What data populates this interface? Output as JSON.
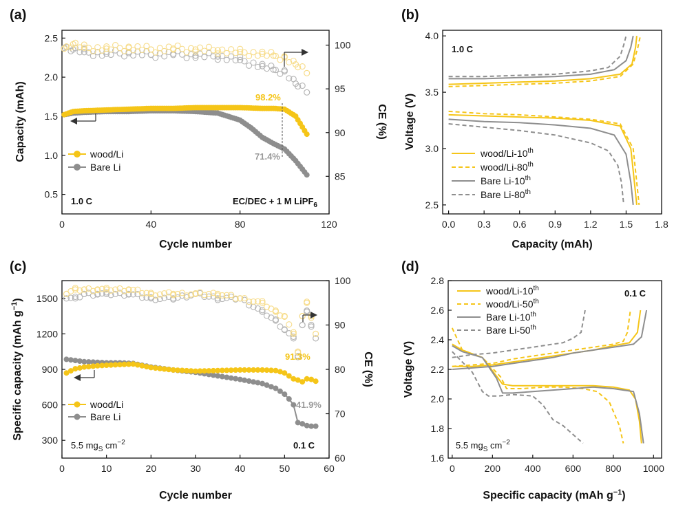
{
  "colors": {
    "wood": "#F5C518",
    "bare": "#8E8E8E",
    "wood_light": "#F7DC8A",
    "bare_light": "#B5B5B5"
  },
  "chart_data": [
    {
      "panel": "(a)",
      "type": "scatter",
      "xlabel": "Cycle number",
      "ylabel": "Capacity (mAh)",
      "y2label": "CE (%)",
      "xlim": [
        0,
        120
      ],
      "ylim": [
        0.25,
        2.6
      ],
      "y2lim": [
        80.7,
        101.7
      ],
      "xticks": [
        "0",
        "40",
        "80",
        "120"
      ],
      "yticks": [
        "0.5",
        "1.0",
        "1.5",
        "2.0",
        "2.5"
      ],
      "y2ticks": [
        "85",
        "90",
        "95",
        "100"
      ],
      "annotations": {
        "rate": "1.0 C",
        "electrolyte": "EC/DEC + 1 M LiPF",
        "electrolyte_sub": "6",
        "wood_ret": "98.2%",
        "bare_ret": "71.4%"
      },
      "series": [
        {
          "name": "wood/Li",
          "axis": "y",
          "x": [
            1,
            5,
            10,
            20,
            30,
            40,
            50,
            60,
            70,
            80,
            90,
            95,
            100,
            105,
            110
          ],
          "y": [
            1.52,
            1.56,
            1.57,
            1.58,
            1.59,
            1.6,
            1.6,
            1.61,
            1.61,
            1.61,
            1.6,
            1.6,
            1.59,
            1.5,
            1.27
          ]
        },
        {
          "name": "Bare Li",
          "axis": "y",
          "x": [
            1,
            5,
            10,
            20,
            30,
            40,
            50,
            60,
            70,
            80,
            85,
            90,
            95,
            100,
            105,
            110
          ],
          "y": [
            1.52,
            1.54,
            1.55,
            1.56,
            1.56,
            1.57,
            1.57,
            1.56,
            1.54,
            1.45,
            1.35,
            1.23,
            1.15,
            1.08,
            0.93,
            0.75
          ]
        },
        {
          "name": "wood/Li CE",
          "axis": "y2",
          "x": [
            1,
            5,
            10,
            20,
            30,
            40,
            50,
            60,
            70,
            80,
            90,
            95,
            100,
            105,
            110
          ],
          "y": [
            99.6,
            100.1,
            99.7,
            99.6,
            99.7,
            99.5,
            99.6,
            99.5,
            99.4,
            99.2,
            99.0,
            98.8,
            98.6,
            97.8,
            96.8
          ]
        },
        {
          "name": "Bare Li CE",
          "axis": "y2",
          "x": [
            1,
            5,
            10,
            20,
            30,
            40,
            50,
            60,
            70,
            80,
            90,
            95,
            100,
            105,
            110
          ],
          "y": [
            99.7,
            99.5,
            99.2,
            99.0,
            99.1,
            98.9,
            99.0,
            98.8,
            98.7,
            98.3,
            97.6,
            97.2,
            97.0,
            95.6,
            94.6
          ]
        }
      ]
    },
    {
      "panel": "(b)",
      "type": "line",
      "xlabel": "Capacity (mAh)",
      "ylabel": "Voltage (V)",
      "xlim": [
        -0.05,
        1.8
      ],
      "ylim": [
        2.42,
        4.05
      ],
      "xticks": [
        "0.0",
        "0.3",
        "0.6",
        "0.9",
        "1.2",
        "1.5",
        "1.8"
      ],
      "yticks": [
        "2.5",
        "3.0",
        "3.5",
        "4.0"
      ],
      "annotations": {
        "rate": "1.0 C"
      },
      "series": [
        {
          "name": "wood/Li-10th",
          "style": "solid",
          "color": "wood",
          "charge": {
            "x": [
              0,
              0.3,
              0.6,
              0.9,
              1.2,
              1.45,
              1.55,
              1.58,
              1.59
            ],
            "y": [
              3.57,
              3.58,
              3.59,
              3.6,
              3.62,
              3.66,
              3.75,
              3.9,
              4.0
            ]
          },
          "discharge": {
            "x": [
              0,
              0.3,
              0.6,
              0.9,
              1.2,
              1.45,
              1.54,
              1.57,
              1.59
            ],
            "y": [
              3.3,
              3.29,
              3.28,
              3.27,
              3.25,
              3.2,
              3.0,
              2.7,
              2.5
            ]
          }
        },
        {
          "name": "wood/Li-80th",
          "style": "dashed",
          "color": "wood",
          "charge": {
            "x": [
              0,
              0.3,
              0.6,
              0.9,
              1.2,
              1.45,
              1.56,
              1.6,
              1.62
            ],
            "y": [
              3.55,
              3.56,
              3.57,
              3.58,
              3.6,
              3.64,
              3.75,
              3.9,
              4.0
            ]
          },
          "discharge": {
            "x": [
              0,
              0.3,
              0.6,
              0.9,
              1.2,
              1.45,
              1.56,
              1.59,
              1.61
            ],
            "y": [
              3.33,
              3.31,
              3.3,
              3.28,
              3.26,
              3.22,
              3.0,
              2.7,
              2.5
            ]
          }
        },
        {
          "name": "Bare Li-10th",
          "style": "solid",
          "color": "bare",
          "charge": {
            "x": [
              0,
              0.3,
              0.6,
              0.9,
              1.2,
              1.4,
              1.5,
              1.54,
              1.56
            ],
            "y": [
              3.62,
              3.62,
              3.63,
              3.64,
              3.66,
              3.7,
              3.78,
              3.9,
              4.0
            ]
          },
          "discharge": {
            "x": [
              0,
              0.3,
              0.6,
              0.9,
              1.2,
              1.4,
              1.5,
              1.54,
              1.56
            ],
            "y": [
              3.26,
              3.24,
              3.23,
              3.21,
              3.18,
              3.12,
              2.95,
              2.7,
              2.5
            ]
          }
        },
        {
          "name": "Bare Li-80th",
          "style": "dashed",
          "color": "bare",
          "charge": {
            "x": [
              0,
              0.3,
              0.6,
              0.9,
              1.2,
              1.35,
              1.45,
              1.48,
              1.5
            ],
            "y": [
              3.64,
              3.64,
              3.65,
              3.66,
              3.69,
              3.72,
              3.82,
              3.92,
              4.0
            ]
          },
          "discharge": {
            "x": [
              0,
              0.3,
              0.6,
              0.9,
              1.2,
              1.35,
              1.43,
              1.46,
              1.48
            ],
            "y": [
              3.22,
              3.19,
              3.16,
              3.12,
              3.05,
              2.98,
              2.85,
              2.7,
              2.5
            ]
          }
        }
      ]
    },
    {
      "panel": "(c)",
      "type": "scatter",
      "xlabel": "Cycle number",
      "ylabel": "Specific capacity (mAh g",
      "ylabel_sup": "−1",
      "y2label": "CE (%)",
      "xlim": [
        0,
        60
      ],
      "ylim": [
        150,
        1650
      ],
      "y2lim": [
        60,
        100
      ],
      "xticks": [
        "0",
        "10",
        "20",
        "30",
        "40",
        "50",
        "60"
      ],
      "yticks": [
        "300",
        "600",
        "900",
        "1200",
        "1500"
      ],
      "y2ticks": [
        "60",
        "70",
        "80",
        "90",
        "100"
      ],
      "annotations": {
        "rate": "0.1 C",
        "loading": "5.5 mg",
        "loading_sub": "S",
        "loading_unit": " cm",
        "loading_sup": "−2",
        "wood_ret": "91.3%",
        "bare_ret": "41.9%"
      },
      "series": [
        {
          "name": "wood/Li",
          "axis": "y",
          "x": [
            1,
            3,
            5,
            8,
            10,
            13,
            16,
            18,
            20,
            25,
            30,
            35,
            40,
            45,
            48,
            50,
            52,
            53,
            54,
            55,
            56,
            57
          ],
          "y": [
            870,
            905,
            920,
            930,
            935,
            940,
            945,
            930,
            915,
            895,
            885,
            890,
            895,
            895,
            890,
            870,
            820,
            810,
            795,
            820,
            815,
            800
          ]
        },
        {
          "name": "Bare Li",
          "axis": "y",
          "x": [
            1,
            3,
            5,
            8,
            10,
            13,
            16,
            18,
            20,
            25,
            30,
            35,
            40,
            45,
            48,
            50,
            51,
            52,
            53,
            54,
            55,
            56,
            57
          ],
          "y": [
            985,
            975,
            965,
            960,
            955,
            955,
            950,
            935,
            920,
            895,
            875,
            845,
            815,
            780,
            740,
            690,
            650,
            600,
            450,
            440,
            425,
            420,
            420
          ]
        },
        {
          "name": "wood/Li CE",
          "axis": "y2",
          "x": [
            1,
            3,
            5,
            8,
            10,
            15,
            20,
            25,
            30,
            35,
            40,
            45,
            48,
            50,
            52,
            53,
            54,
            55,
            56,
            57
          ],
          "y": [
            97,
            98,
            98,
            98,
            98,
            98,
            97,
            97,
            97,
            97,
            96,
            95,
            93,
            92,
            88,
            84,
            92,
            95,
            92,
            88
          ]
        },
        {
          "name": "Bare Li CE",
          "axis": "y2",
          "x": [
            1,
            3,
            5,
            8,
            10,
            15,
            20,
            25,
            30,
            35,
            40,
            45,
            48,
            50,
            52,
            53,
            54,
            55,
            56,
            57
          ],
          "y": [
            96,
            96,
            97,
            97,
            97,
            97,
            96,
            96,
            97,
            96,
            96,
            93,
            91,
            89,
            87,
            83,
            90,
            93,
            90,
            87
          ]
        }
      ]
    },
    {
      "panel": "(d)",
      "type": "line",
      "xlabel": "Specific capacity (mAh g",
      "xlabel_sup": "−1",
      "ylabel": "Voltage (V)",
      "xlim": [
        -20,
        1040
      ],
      "ylim": [
        1.6,
        2.8
      ],
      "xticks": [
        "0",
        "200",
        "400",
        "600",
        "800",
        "1000"
      ],
      "yticks": [
        "1.6",
        "1.8",
        "2.0",
        "2.2",
        "2.4",
        "2.6",
        "2.8"
      ],
      "annotations": {
        "rate": "0.1 C",
        "loading": "5.5 mg",
        "loading_sub": "S",
        "loading_unit": " cm",
        "loading_sup": "−2"
      },
      "series": [
        {
          "name": "wood/Li-10th",
          "style": "solid",
          "color": "wood",
          "charge": {
            "x": [
              0,
              100,
              200,
              300,
              400,
              500,
              600,
              700,
              800,
              880,
              920,
              935
            ],
            "y": [
              2.22,
              2.22,
              2.23,
              2.25,
              2.27,
              2.29,
              2.31,
              2.33,
              2.36,
              2.38,
              2.45,
              2.6
            ]
          },
          "discharge": {
            "x": [
              0,
              50,
              150,
              250,
              300,
              400,
              500,
              600,
              700,
              800,
              880,
              910,
              930,
              940
            ],
            "y": [
              2.37,
              2.33,
              2.28,
              2.1,
              2.09,
              2.09,
              2.09,
              2.09,
              2.09,
              2.08,
              2.06,
              2.0,
              1.85,
              1.7
            ]
          }
        },
        {
          "name": "wood/Li-50th",
          "style": "dashed",
          "color": "wood",
          "charge": {
            "x": [
              0,
              100,
              200,
              300,
              400,
              500,
              600,
              700,
              800,
              850,
              870,
              885
            ],
            "y": [
              2.22,
              2.23,
              2.24,
              2.27,
              2.29,
              2.31,
              2.33,
              2.35,
              2.37,
              2.39,
              2.45,
              2.6
            ]
          },
          "discharge": {
            "x": [
              0,
              50,
              150,
              240,
              270,
              350,
              450,
              550,
              650,
              720,
              780,
              830,
              850
            ],
            "y": [
              2.48,
              2.33,
              2.28,
              2.15,
              2.07,
              2.07,
              2.08,
              2.08,
              2.07,
              2.05,
              1.98,
              1.82,
              1.7
            ]
          }
        },
        {
          "name": "Bare Li-10th",
          "style": "solid",
          "color": "bare",
          "charge": {
            "x": [
              0,
              100,
              200,
              300,
              400,
              500,
              600,
              700,
              800,
              900,
              940,
              965
            ],
            "y": [
              2.2,
              2.21,
              2.22,
              2.24,
              2.26,
              2.28,
              2.31,
              2.33,
              2.35,
              2.37,
              2.42,
              2.6
            ]
          },
          "discharge": {
            "x": [
              0,
              50,
              150,
              220,
              250,
              300,
              400,
              500,
              600,
              700,
              800,
              900,
              930,
              950
            ],
            "y": [
              2.36,
              2.32,
              2.28,
              2.14,
              2.04,
              2.04,
              2.05,
              2.06,
              2.07,
              2.08,
              2.07,
              2.05,
              1.9,
              1.7
            ]
          }
        },
        {
          "name": "Bare Li-50th",
          "style": "dashed",
          "color": "bare",
          "charge": {
            "x": [
              0,
              100,
              200,
              300,
              400,
              500,
              550,
              600,
              640,
              660
            ],
            "y": [
              2.28,
              2.3,
              2.31,
              2.33,
              2.35,
              2.37,
              2.38,
              2.41,
              2.45,
              2.6
            ]
          },
          "discharge": {
            "x": [
              0,
              50,
              100,
              150,
              180,
              230,
              300,
              400,
              450,
              500,
              550,
              600,
              650
            ],
            "y": [
              2.32,
              2.25,
              2.18,
              2.05,
              2.02,
              2.02,
              2.03,
              2.02,
              1.96,
              1.86,
              1.82,
              1.76,
              1.7
            ]
          }
        }
      ]
    }
  ]
}
